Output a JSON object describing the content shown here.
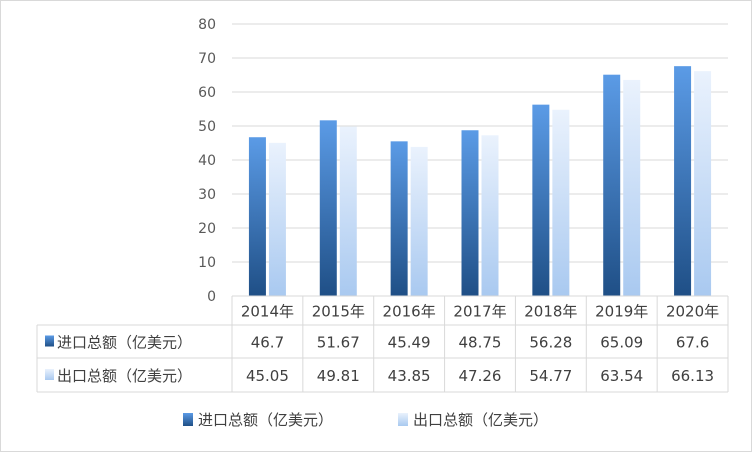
{
  "chart_data": {
    "type": "bar",
    "categories": [
      "2014年",
      "2015年",
      "2016年",
      "2017年",
      "2018年",
      "2019年",
      "2020年"
    ],
    "series": [
      {
        "name": "进口总额（亿美元）",
        "values": [
          46.7,
          51.67,
          45.49,
          48.75,
          56.28,
          65.09,
          67.6
        ],
        "color": "#2e6ab3"
      },
      {
        "name": "出口总额（亿美元）",
        "values": [
          45.05,
          49.81,
          43.85,
          47.26,
          54.77,
          63.54,
          66.13
        ],
        "color": "#bcd6f5"
      }
    ],
    "table_values": [
      [
        "46.7",
        "51.67",
        "45.49",
        "48.75",
        "56.28",
        "65.09",
        "67.6"
      ],
      [
        "45.05",
        "49.81",
        "43.85",
        "47.26",
        "54.77",
        "63.54",
        "66.13"
      ]
    ],
    "yticks": [
      "0",
      "10",
      "20",
      "30",
      "40",
      "50",
      "60",
      "70",
      "80"
    ],
    "ylim": [
      0,
      80
    ],
    "grid": true,
    "legend": "bottom",
    "data_table": true
  }
}
